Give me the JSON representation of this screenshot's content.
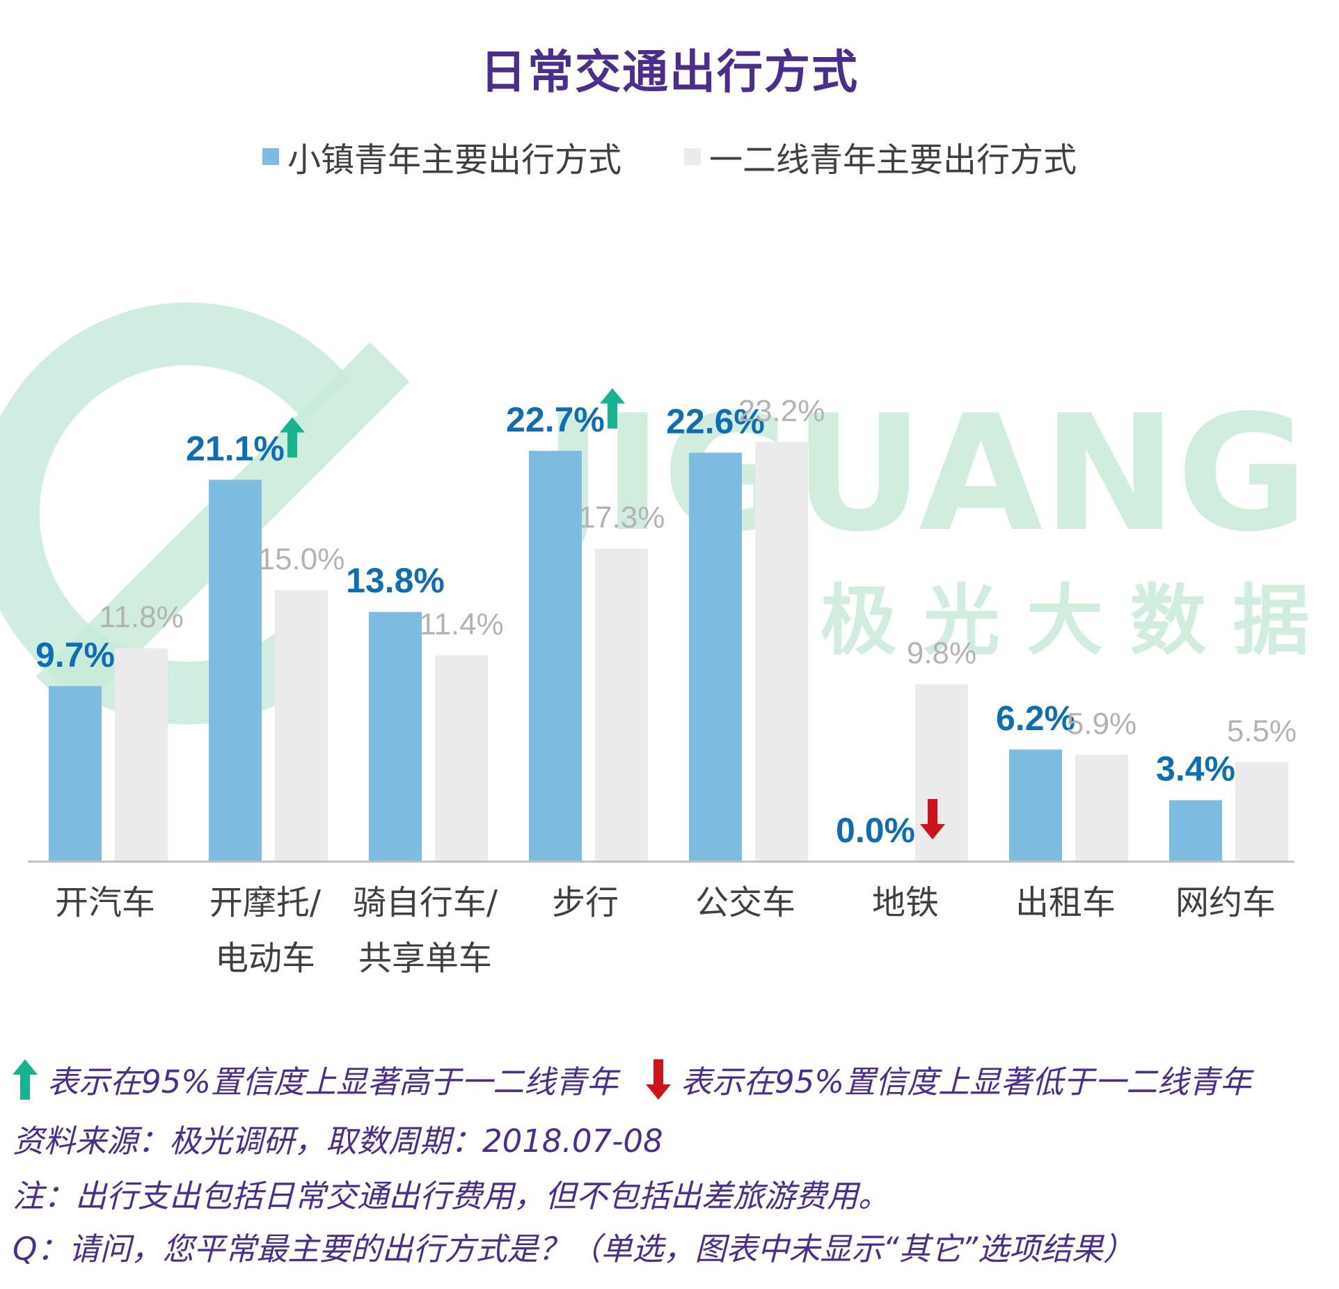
{
  "title": "日常交通出行方式",
  "watermark": {
    "latin": "JIGUANG",
    "chinese": "极 光 大 数 据"
  },
  "colors": {
    "primary": "#7fbce1",
    "secondary": "#ebebeb",
    "primary_label": "#0f6db3",
    "secondary_label": "#b3b3b3",
    "up_arrow": "#18b28e",
    "down_arrow": "#d0121b",
    "title": "#4b2d8f",
    "watermark": "#c8ebd9"
  },
  "chart_data": {
    "type": "bar",
    "title": "日常交通出行方式",
    "categories": [
      [
        "开汽车"
      ],
      [
        "开摩托/",
        "电动车"
      ],
      [
        "骑自行车/",
        "共享单车"
      ],
      [
        "步行"
      ],
      [
        "公交车"
      ],
      [
        "地铁"
      ],
      [
        "出租车"
      ],
      [
        "网约车"
      ]
    ],
    "series": [
      {
        "name": "小镇青年主要出行方式",
        "values": [
          9.7,
          21.1,
          13.8,
          22.7,
          22.6,
          0.0,
          6.2,
          3.4
        ],
        "labels": [
          "9.7%",
          "21.1%",
          "13.8%",
          "22.7%",
          "22.6%",
          "0.0%",
          "6.2%",
          "3.4%"
        ]
      },
      {
        "name": "一二线青年主要出行方式",
        "values": [
          11.8,
          15.0,
          11.4,
          17.3,
          23.2,
          9.8,
          5.9,
          5.5
        ],
        "labels": [
          "11.8%",
          "15.0%",
          "11.4%",
          "17.3%",
          "23.2%",
          "9.8%",
          "5.9%",
          "5.5%"
        ]
      }
    ],
    "significance": [
      "",
      "up",
      "",
      "up",
      "",
      "down",
      "",
      ""
    ],
    "ylim": [
      0,
      25
    ],
    "xlabel": "",
    "ylabel": "",
    "grid": false,
    "legend_position": "top-center"
  },
  "footnotes": {
    "sig_up": "表示在95%置信度上显著高于一二线青年",
    "sig_down": "表示在95%置信度上显著低于一二线青年",
    "source": "资料来源：极光调研，取数周期：2018.07-08",
    "note": "注：出行支出包括日常交通出行费用，但不包括出差旅游费用。",
    "question": "Q：请问，您平常最主要的出行方式是？（单选，图表中未显示“其它”选项结果）"
  }
}
